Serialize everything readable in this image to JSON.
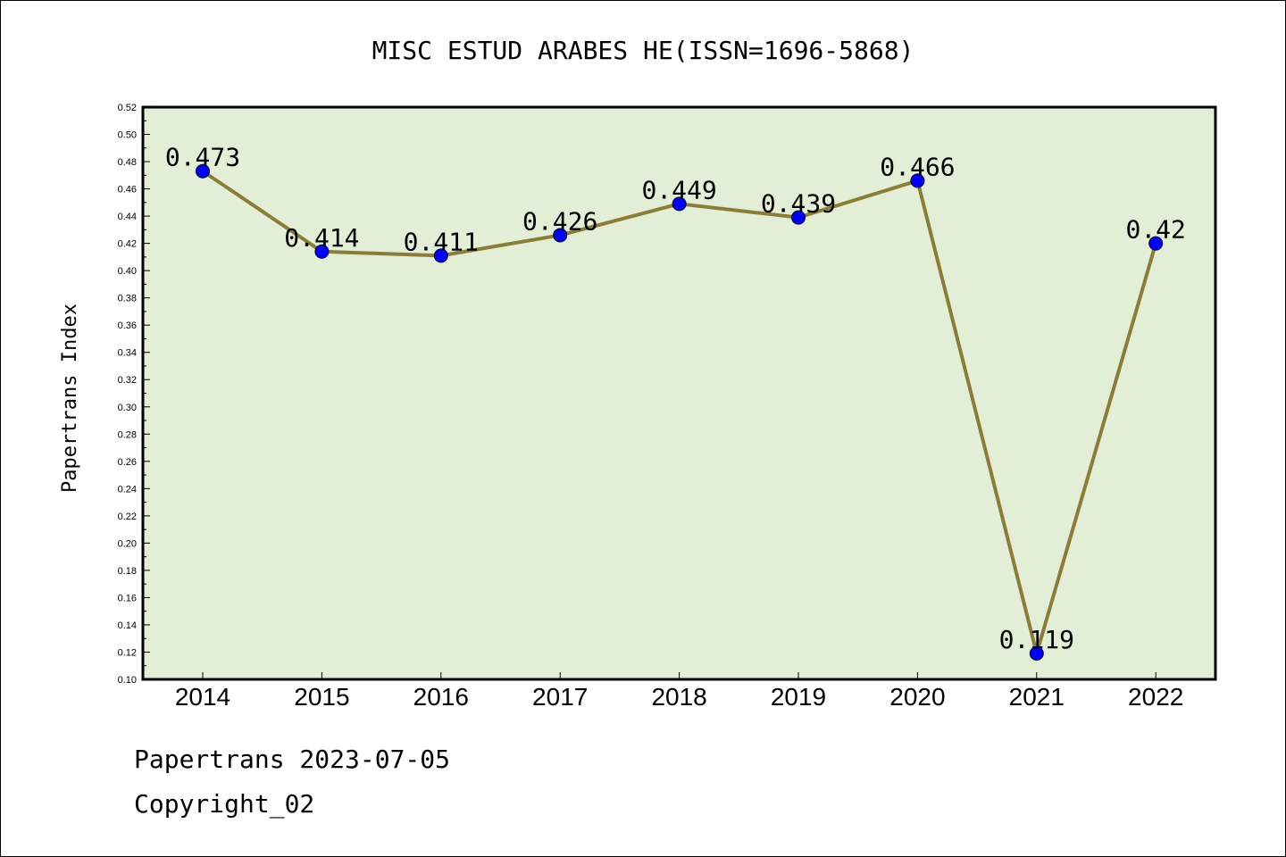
{
  "chart_data": {
    "type": "line",
    "title": "MISC ESTUD ARABES HE(ISSN=1696-5868)",
    "ylabel": "Papertrans Index",
    "xlabel": "",
    "categories": [
      "2014",
      "2015",
      "2016",
      "2017",
      "2018",
      "2019",
      "2020",
      "2021",
      "2022"
    ],
    "values": [
      0.473,
      0.414,
      0.411,
      0.426,
      0.449,
      0.439,
      0.466,
      0.119,
      0.42
    ],
    "data_labels": [
      "0.473",
      "0.414",
      "0.411",
      "0.426",
      "0.449",
      "0.439",
      "0.466",
      "0.119",
      "0.42"
    ],
    "ylim": [
      0.1,
      0.52
    ],
    "yticks": [
      "0.10",
      "0.12",
      "0.14",
      "0.16",
      "0.18",
      "0.20",
      "0.22",
      "0.24",
      "0.26",
      "0.28",
      "0.30",
      "0.32",
      "0.34",
      "0.36",
      "0.38",
      "0.40",
      "0.42",
      "0.44",
      "0.46",
      "0.48",
      "0.50",
      "0.52"
    ],
    "grid": false,
    "colors": {
      "plot_background": "#e2efd6",
      "line": "#8b7d35",
      "marker": "#0000ff"
    }
  },
  "footer": {
    "line1": "Papertrans 2023-07-05",
    "line2": "Copyright_02"
  }
}
